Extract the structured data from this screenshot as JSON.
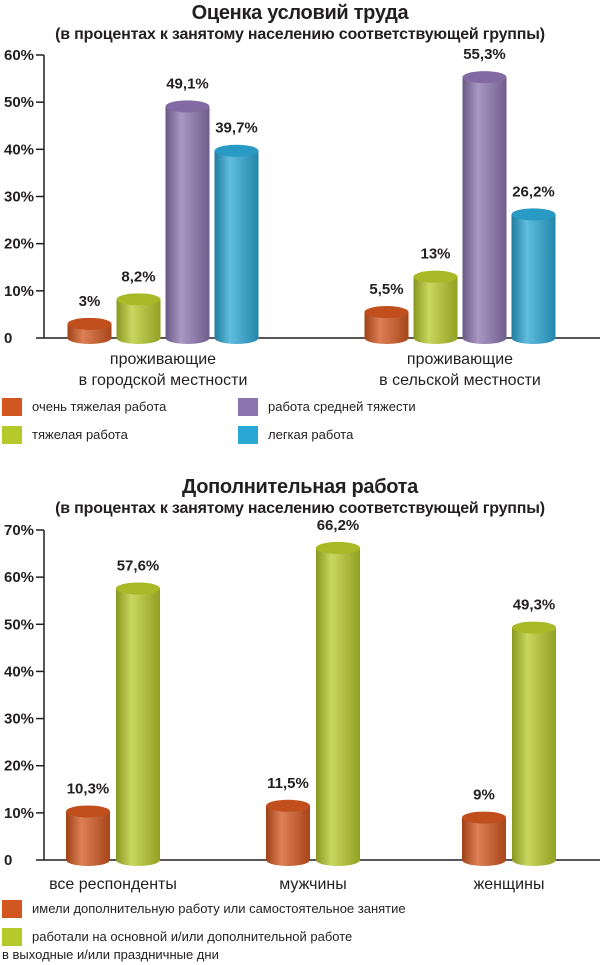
{
  "chart_data": [
    {
      "type": "bar",
      "title": "Оценка условий труда",
      "subtitle": "(в процентах к занятому населению соответствующей группы)",
      "categories": [
        [
          "проживающие",
          "в городской местности"
        ],
        [
          "проживающие",
          "в сельской местности"
        ]
      ],
      "ylim": [
        0,
        60
      ],
      "yticks": [
        "0",
        "10%",
        "20%",
        "30%",
        "40%",
        "50%",
        "60%"
      ],
      "series": [
        {
          "name": "очень тяжелая работа",
          "color": "#d2561f",
          "values": [
            3,
            5.5
          ],
          "labels": [
            "3%",
            "5,5%"
          ]
        },
        {
          "name": "тяжелая работа",
          "color": "#b5c92a",
          "values": [
            8.2,
            13
          ],
          "labels": [
            "8,2%",
            "13%"
          ]
        },
        {
          "name": "работа средней тяжести",
          "color": "#8c74b0",
          "values": [
            49.1,
            55.3
          ],
          "labels": [
            "49,1%",
            "55,3%"
          ]
        },
        {
          "name": "легкая работа",
          "color": "#2ba7d4",
          "values": [
            39.7,
            26.2
          ],
          "labels": [
            "39,7%",
            "26,2%"
          ]
        }
      ],
      "legend": "bottom"
    },
    {
      "type": "bar",
      "title": "Дополнительная работа",
      "subtitle": "(в процентах к занятому населению соответствующей группы)",
      "categories": [
        [
          "все респонденты"
        ],
        [
          "мужчины"
        ],
        [
          "женщины"
        ]
      ],
      "ylim": [
        0,
        70
      ],
      "yticks": [
        "0",
        "10%",
        "20%",
        "30%",
        "40%",
        "50%",
        "60%",
        "70%"
      ],
      "series": [
        {
          "name": "имели дополнительную работу или самостоятельное занятие",
          "color": "#d2561f",
          "values": [
            10.3,
            11.5,
            9
          ],
          "labels": [
            "10,3%",
            "11,5%",
            "9%"
          ]
        },
        {
          "name": "работали на основной и/или дополнительной работе в выходные и/или праздничные дни",
          "name_lines": [
            "работали на основной и/или дополнительной работе",
            "в выходные и/или праздничные дни"
          ],
          "color": "#b5c92a",
          "values": [
            57.6,
            66.2,
            49.3
          ],
          "labels": [
            "57,6%",
            "66,2%",
            "49,3%"
          ]
        }
      ],
      "legend": "bottom"
    }
  ]
}
